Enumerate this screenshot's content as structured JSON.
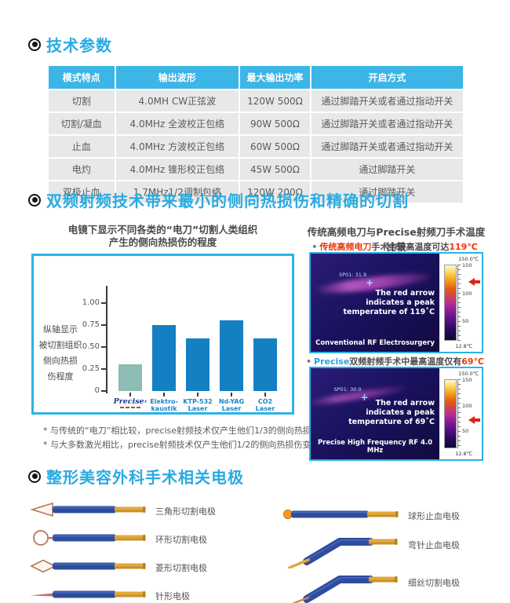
{
  "accent_color": "#29abe2",
  "section_params": {
    "heading": "技术参数",
    "table": {
      "headers": [
        "模式特点",
        "输出波形",
        "最大输出功率",
        "开启方式"
      ],
      "rows": [
        [
          "切割",
          "4.0MH CW正弦波",
          "120W 500Ω",
          "通过脚踏开关或者通过指动开关"
        ],
        [
          "切割/凝血",
          "4.0MHz 全波校正包络",
          "90W 500Ω",
          "通过脚踏开关或者通过指动开关"
        ],
        [
          "止血",
          "4.0MHz 方波校正包络",
          "60W 500Ω",
          "通过脚踏开关或者通过指动开关"
        ],
        [
          "电灼",
          "4.0MHz 锥形校正包络",
          "45W 500Ω",
          "通过脚踏开关"
        ],
        [
          "双极止血",
          "1.7MHz1/2调制包络",
          "120W 200Ω",
          "通过脚踏开关"
        ]
      ]
    }
  },
  "section_tech": {
    "heading": "双频射频技术带来最小的侧向热损伤和精确的切割",
    "left": {
      "title_lines": [
        "电镜下显示不同各类的“电刀”切割人类组织",
        "产生的侧向热损伤的程度"
      ],
      "footnotes": [
        "* 与传统的“电刀”相比较，precise射频技术仅产生他们1/3的侧向热损伤变形",
        "* 与大多数激光相比，precise射频技术仅产生他们1/2的侧向热损伤变形"
      ]
    },
    "right": {
      "title": "传统高频电刀与Precise射频刀手术温度比较",
      "items": [
        {
          "bullet_em": "传统高频电刀",
          "em_color": "#e8380d",
          "bullet_rest": "手术中最高温度可达",
          "bullet_temp": "119℃",
          "spot_label": "SP01: 31.9",
          "caption_lines": [
            "The red arrow",
            "indicates a peak",
            "temperature of 119˚C"
          ],
          "footer": "Conventional RF Electrosurgery",
          "scale_top": "150.0℃",
          "scale_bottom": "12.8℃",
          "scale_max": 150.0,
          "scale_min": 12.8,
          "ticks": [
            "150",
            "100",
            "50"
          ],
          "arrow_temp": 119
        },
        {
          "bullet_em": "Precise",
          "em_color": "#2e9fe0",
          "bullet_rest": "双频射频手术中最高温度仅有",
          "bullet_temp": "69℃",
          "spot_label": "SP01: 30.0",
          "caption_lines": [
            "The red arrow",
            "indicates a peak",
            "temperature of 69˚C"
          ],
          "footer": "Precise High Frequency RF 4.0 MHz",
          "scale_top": "150.0℃",
          "scale_bottom": "12.8℃",
          "scale_max": 150.0,
          "scale_min": 12.8,
          "ticks": [
            "150",
            "100",
            "50"
          ],
          "arrow_temp": 69
        }
      ]
    }
  },
  "chart_data": {
    "type": "bar",
    "title": "电镜下显示不同各类的“电刀”切割人类组织产生的侧向热损伤的程度",
    "ylabel": "纵轴显示被切割组织侧向热损伤程度",
    "ylabel_lines": [
      "纵轴显示",
      "被切割组织",
      "侧向热损",
      "伤程度"
    ],
    "categories": [
      "Precise",
      "Elektro-kaustik",
      "KTP-532 Laser",
      "Nd-YAG Laser",
      "CO2 Laser"
    ],
    "x_label_lines": [
      [
        "Precise"
      ],
      [
        "Elektro-",
        "kaustik"
      ],
      [
        "KTP-532",
        "Laser"
      ],
      [
        "Nd-YAG",
        "Laser"
      ],
      [
        "CO2",
        "Laser"
      ]
    ],
    "values": [
      0.3,
      0.75,
      0.6,
      0.8,
      0.6
    ],
    "bar_colors": [
      "#8cbcb4",
      "#1380c4",
      "#1380c4",
      "#1380c4",
      "#1380c4"
    ],
    "yticks": [
      0,
      0.25,
      0.5,
      0.75,
      1.0
    ],
    "ytick_labels": [
      "0",
      "0.25",
      "0.50",
      "0.75",
      "1.00"
    ],
    "ylim": [
      0,
      1.2
    ],
    "grid": false,
    "legend": false
  },
  "section_electrodes": {
    "heading": "整形美容外科手术相关电极",
    "left": [
      {
        "tip": "triangle",
        "label": "三角形切割电极"
      },
      {
        "tip": "loop",
        "label": "环形切割电极"
      },
      {
        "tip": "diamond",
        "label": "菱形切割电极"
      },
      {
        "tip": "needle",
        "label": "针形电极"
      }
    ],
    "right": [
      {
        "tip": "ball",
        "label": "球形止血电极"
      },
      {
        "tip": "bent-needle",
        "label": "弯针止血电极"
      },
      {
        "tip": "bent-wire",
        "label": "细丝切割电极"
      }
    ]
  }
}
